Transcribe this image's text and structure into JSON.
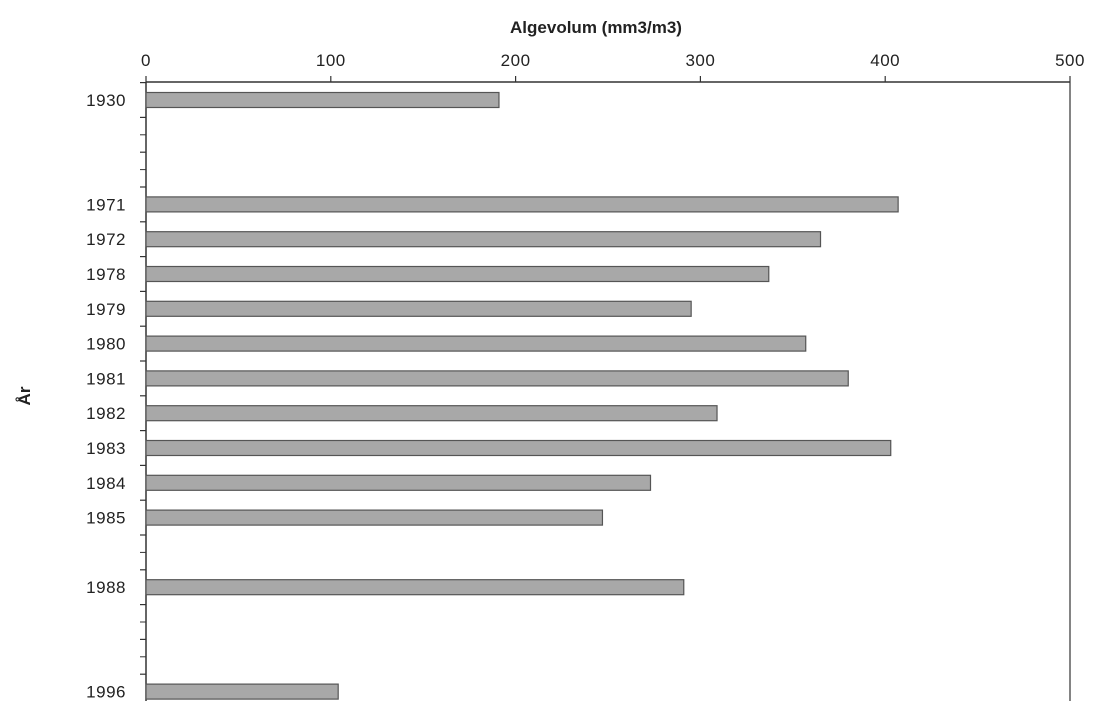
{
  "chart_data": {
    "type": "bar",
    "orientation": "horizontal",
    "title": "",
    "xlabel": "Algevolum (mm3/m3)",
    "ylabel": "År",
    "xlim": [
      0,
      500
    ],
    "x_ticks": [
      0,
      100,
      200,
      300,
      400,
      500
    ],
    "x_axis_position": "top",
    "grid": false,
    "category_ticks_between_years": true,
    "categories": [
      "1930",
      "1971",
      "1972",
      "1978",
      "1979",
      "1980",
      "1981",
      "1982",
      "1983",
      "1984",
      "1985",
      "1988",
      "1996"
    ],
    "values": [
      191,
      407,
      365,
      337,
      295,
      357,
      380,
      309,
      403,
      273,
      247,
      291,
      104
    ],
    "colors": {
      "bar_fill": "#a8a8a8",
      "bar_stroke": "#555555",
      "axis": "#333333"
    }
  }
}
